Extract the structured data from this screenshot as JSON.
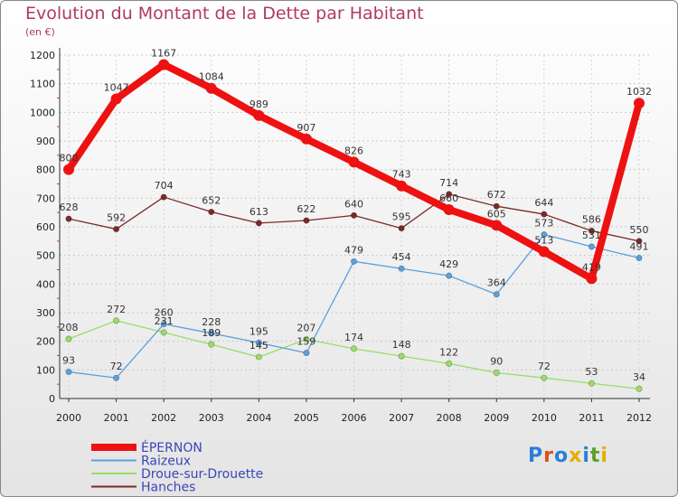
{
  "header": {
    "title": "Evolution du Montant de la Dette par Habitant",
    "subtitle": "(en €)"
  },
  "logo": {
    "text": "Proxiti",
    "colors": [
      "#2a7fd4",
      "#e0501a",
      "#2a7fd4",
      "#e0b000",
      "#2a7fd4",
      "#5aa02c",
      "#e0b000"
    ]
  },
  "chart_data": {
    "type": "line",
    "title": "Evolution du Montant de la Dette par Habitant",
    "subtitle": "(en €)",
    "xlabel": "",
    "ylabel": "",
    "x": [
      "2000",
      "2001",
      "2002",
      "2003",
      "2004",
      "2005",
      "2006",
      "2007",
      "2008",
      "2009",
      "2010",
      "2011",
      "2012"
    ],
    "ylim": [
      0,
      1200
    ],
    "yticks": [
      0,
      100,
      200,
      300,
      400,
      500,
      600,
      700,
      800,
      900,
      1000,
      1100,
      1200
    ],
    "grid": true,
    "legend_position": "bottom-left",
    "series": [
      {
        "name": "ÉPERNON",
        "color": "#ee1111",
        "values": [
          800,
          1047,
          1167,
          1084,
          989,
          907,
          826,
          743,
          660,
          605,
          513,
          419,
          1032
        ],
        "labels": [
          "800",
          "1047",
          "1167",
          "1084",
          "989",
          "907",
          "826",
          "743",
          "660",
          "605",
          "513",
          "419",
          "1032"
        ]
      },
      {
        "name": "Raizeux",
        "color": "#5aa0dc",
        "values": [
          93,
          72,
          260,
          228,
          195,
          159,
          479,
          454,
          429,
          364,
          573,
          531,
          491
        ],
        "labels": [
          "93",
          "72",
          "260",
          "228",
          "195",
          "159",
          "479",
          "454",
          "429",
          "364",
          "573",
          "531",
          "491"
        ]
      },
      {
        "name": "Droue-sur-Drouette",
        "color": "#99dd66",
        "values": [
          208,
          272,
          231,
          189,
          145,
          207,
          174,
          148,
          122,
          90,
          72,
          53,
          34
        ],
        "labels": [
          "208",
          "272",
          "231",
          "189",
          "145",
          "207",
          "174",
          "148",
          "122",
          "90",
          "72",
          "53",
          "34"
        ]
      },
      {
        "name": "Hanches",
        "color": "#7a2a2a",
        "values": [
          628,
          592,
          704,
          652,
          613,
          622,
          640,
          595,
          714,
          672,
          644,
          586,
          550
        ],
        "labels": [
          "628",
          "592",
          "704",
          "652",
          "613",
          "622",
          "640",
          "595",
          "714",
          "672",
          "644",
          "586",
          "550"
        ]
      }
    ]
  }
}
